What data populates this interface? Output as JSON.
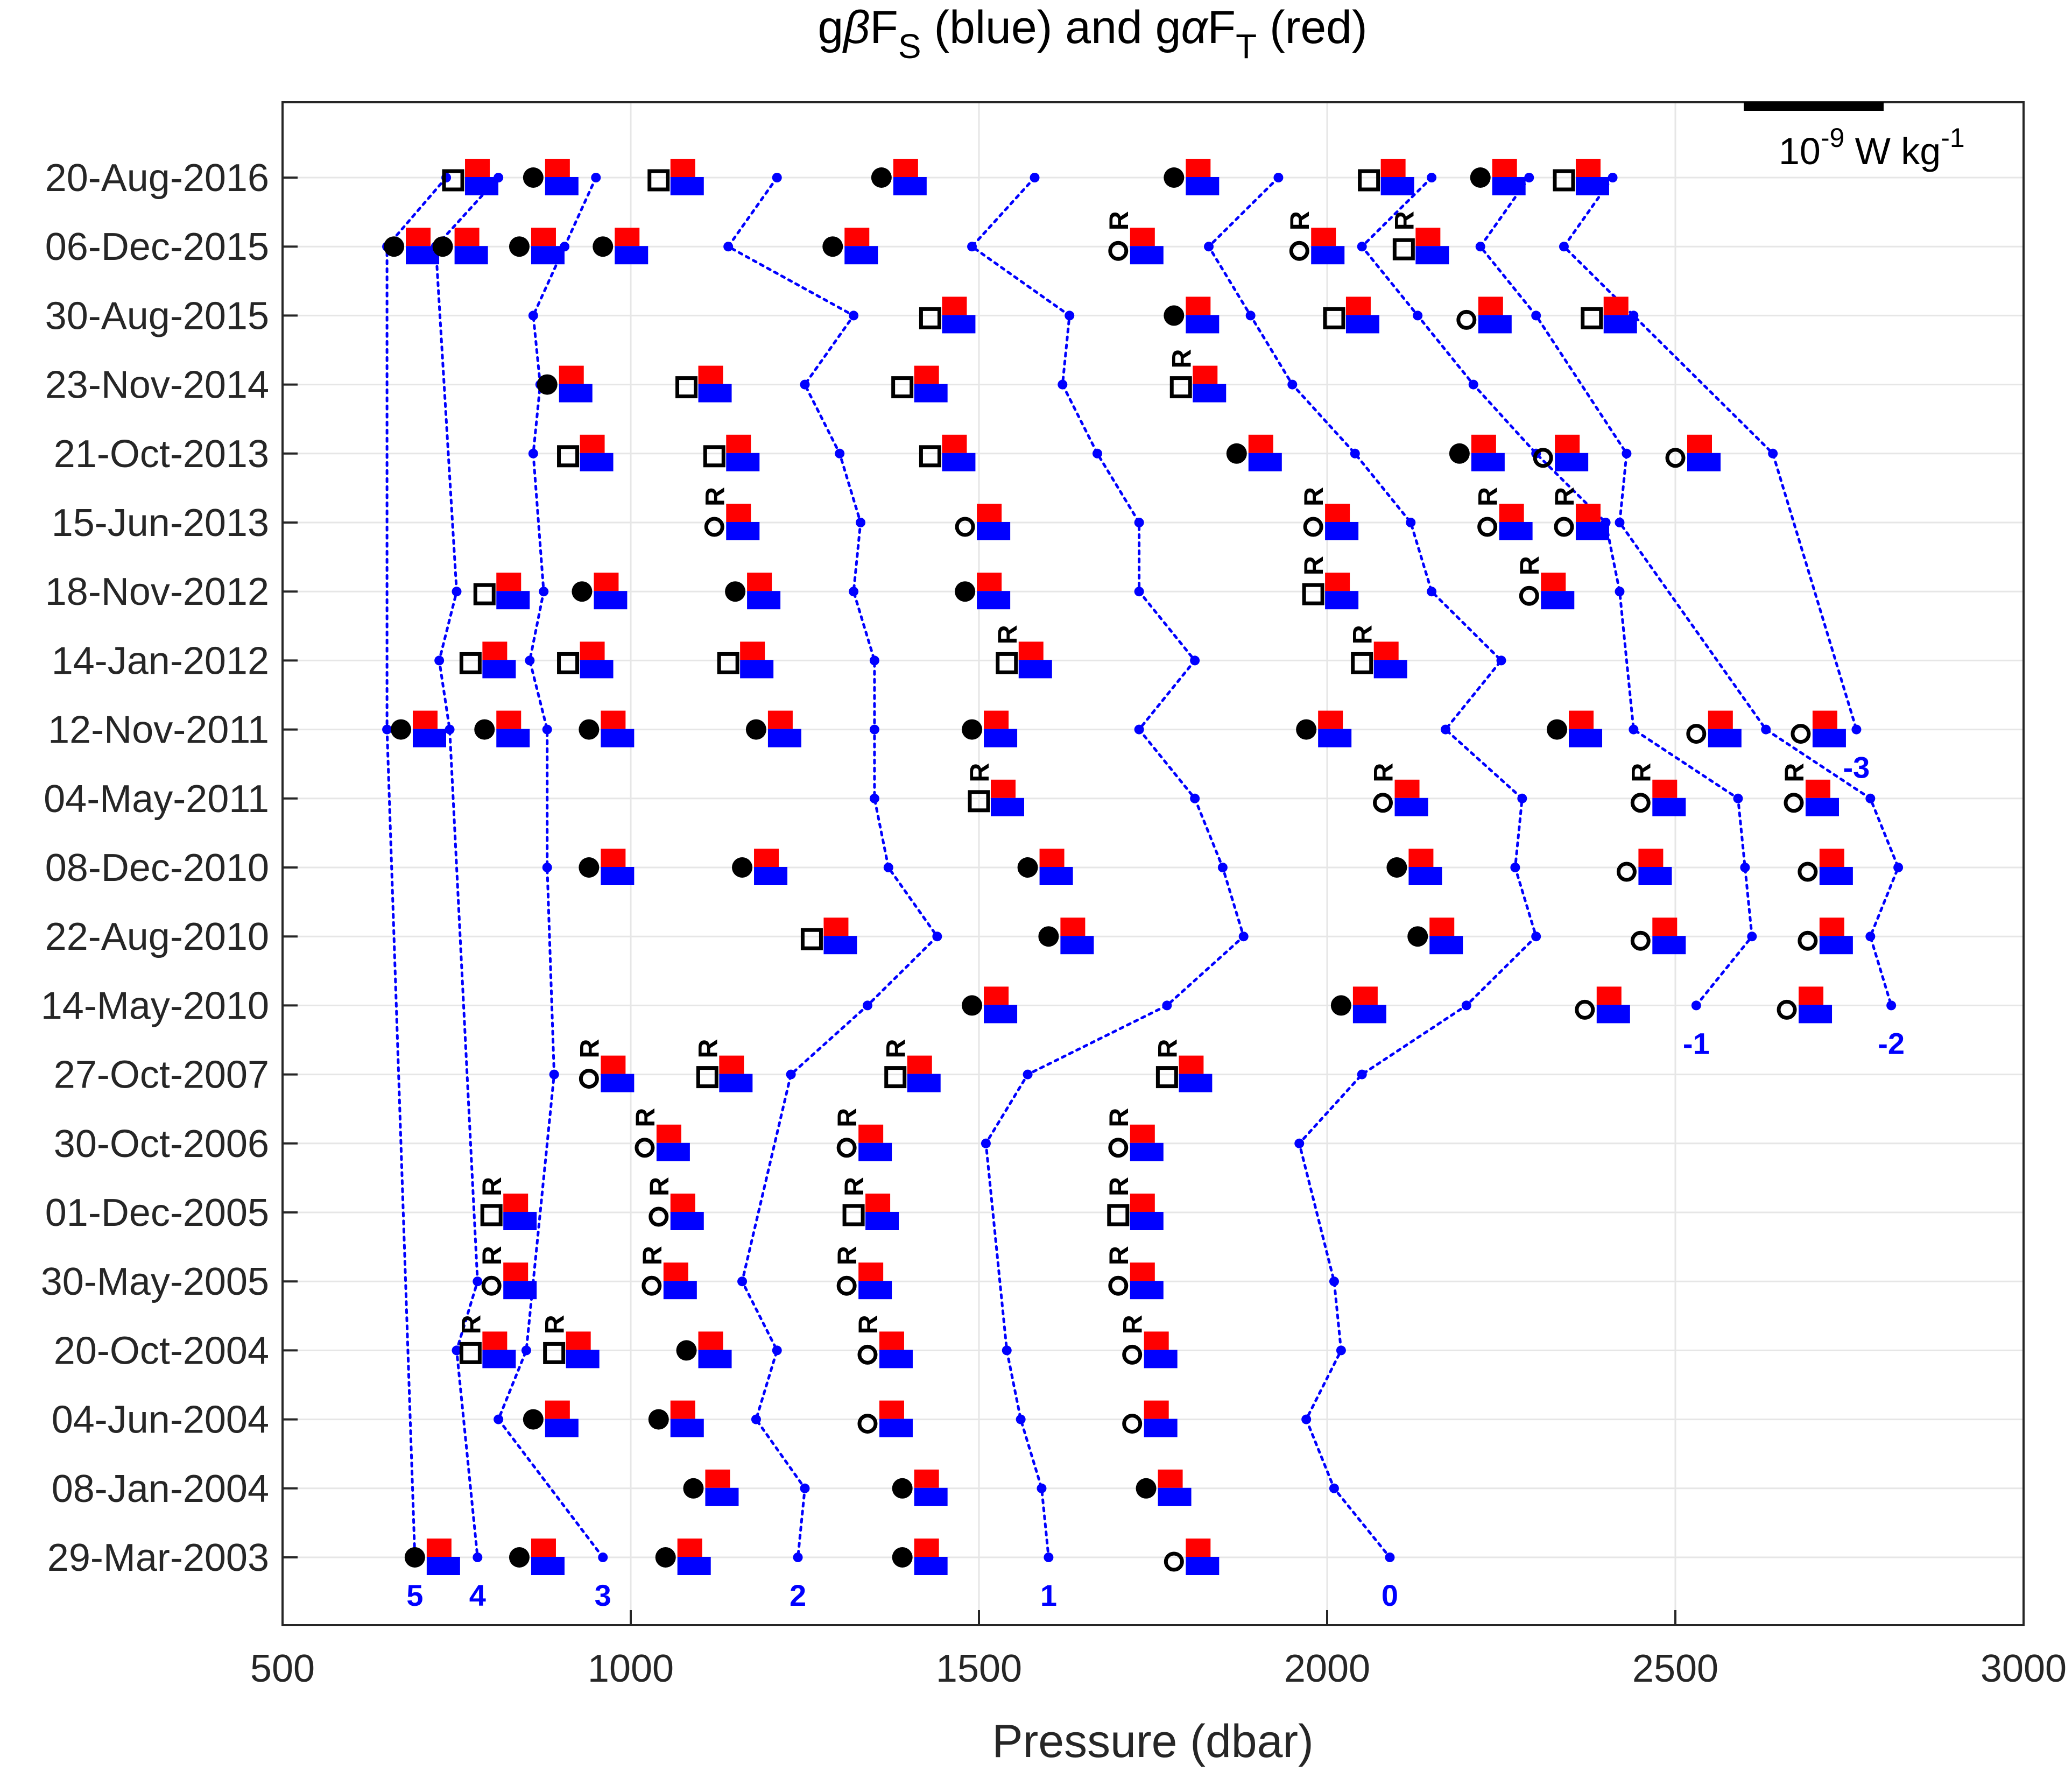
{
  "title": "gβF_S (blue) and gαF_T (red)",
  "title_parts": {
    "pre": "g",
    "beta": "β",
    "fs": "F",
    "fs_sub": "S",
    "mid": " (blue) and g",
    "alpha": "α",
    "ft": "F",
    "ft_sub": "T",
    "post": " (red)"
  },
  "scale_bar_label": "10⁻⁹ W kg⁻¹",
  "scale_parts": {
    "base": "10",
    "exp1": "-9",
    "unit": " W kg",
    "exp2": "-1"
  },
  "colors": {
    "blue": "#0000ff",
    "red": "#ff0000",
    "grid": "#e6e6e6",
    "axis": "#262626"
  },
  "chart_data": {
    "type": "scatter",
    "xlabel": "Pressure (dbar)",
    "xlim": [
      500,
      3000
    ],
    "x_ticks": [
      500,
      1000,
      1500,
      2000,
      2500,
      3000
    ],
    "dates": [
      "20-Aug-2016",
      "06-Dec-2015",
      "30-Aug-2015",
      "23-Nov-2014",
      "21-Oct-2013",
      "15-Jun-2013",
      "18-Nov-2012",
      "14-Jan-2012",
      "12-Nov-2011",
      "04-May-2011",
      "08-Dec-2010",
      "22-Aug-2010",
      "14-May-2010",
      "27-Oct-2007",
      "30-Oct-2006",
      "01-Dec-2005",
      "30-May-2005",
      "20-Oct-2004",
      "04-Jun-2004",
      "08-Jan-2004",
      "29-Mar-2003"
    ],
    "grid": true,
    "legend": "none",
    "contours": [
      {
        "label": "5",
        "points": [
          [
            0,
            735
          ],
          [
            1,
            650
          ],
          [
            8,
            650
          ],
          [
            20,
            690
          ]
        ]
      },
      {
        "label": "4",
        "points": [
          [
            0,
            810
          ],
          [
            1,
            720
          ],
          [
            6,
            750
          ],
          [
            7,
            725
          ],
          [
            8,
            740
          ],
          [
            16,
            780
          ],
          [
            17,
            750
          ],
          [
            20,
            780
          ]
        ]
      },
      {
        "label": "3",
        "points": [
          [
            0,
            950
          ],
          [
            1,
            905
          ],
          [
            2,
            860
          ],
          [
            3,
            870
          ],
          [
            4,
            860
          ],
          [
            6,
            875
          ],
          [
            7,
            855
          ],
          [
            8,
            880
          ],
          [
            10,
            880
          ],
          [
            13,
            890
          ],
          [
            17,
            850
          ],
          [
            18,
            810
          ],
          [
            20,
            960
          ]
        ]
      },
      {
        "label": "2",
        "points": [
          [
            0,
            1210
          ],
          [
            1,
            1140
          ],
          [
            2,
            1320
          ],
          [
            3,
            1250
          ],
          [
            4,
            1300
          ],
          [
            5,
            1330
          ],
          [
            6,
            1320
          ],
          [
            7,
            1350
          ],
          [
            8,
            1350
          ],
          [
            9,
            1350
          ],
          [
            10,
            1370
          ],
          [
            11,
            1440
          ],
          [
            12,
            1340
          ],
          [
            13,
            1230
          ],
          [
            16,
            1160
          ],
          [
            17,
            1210
          ],
          [
            18,
            1180
          ],
          [
            19,
            1250
          ],
          [
            20,
            1240
          ]
        ]
      },
      {
        "label": "1",
        "points": [
          [
            0,
            1580
          ],
          [
            1,
            1490
          ],
          [
            2,
            1630
          ],
          [
            3,
            1620
          ],
          [
            4,
            1670
          ],
          [
            5,
            1730
          ],
          [
            6,
            1730
          ],
          [
            7,
            1810
          ],
          [
            8,
            1730
          ],
          [
            9,
            1810
          ],
          [
            10,
            1850
          ],
          [
            11,
            1880
          ],
          [
            12,
            1770
          ],
          [
            13,
            1570
          ],
          [
            14,
            1510
          ],
          [
            17,
            1540
          ],
          [
            18,
            1560
          ],
          [
            19,
            1590
          ],
          [
            20,
            1600
          ]
        ]
      },
      {
        "label": "0",
        "points": [
          [
            0,
            1930
          ],
          [
            1,
            1830
          ],
          [
            2,
            1890
          ],
          [
            3,
            1950
          ],
          [
            4,
            2040
          ],
          [
            5,
            2120
          ],
          [
            6,
            2150
          ],
          [
            7,
            2250
          ],
          [
            8,
            2170
          ],
          [
            9,
            2280
          ],
          [
            10,
            2270
          ],
          [
            11,
            2300
          ],
          [
            12,
            2200
          ],
          [
            13,
            2050
          ],
          [
            14,
            1960
          ],
          [
            16,
            2010
          ],
          [
            17,
            2020
          ],
          [
            18,
            1970
          ],
          [
            19,
            2010
          ],
          [
            20,
            2090
          ]
        ]
      },
      {
        "label": "-1",
        "points": [
          [
            0,
            2150
          ],
          [
            1,
            2050
          ],
          [
            2,
            2130
          ],
          [
            3,
            2210
          ],
          [
            4,
            2300
          ],
          [
            5,
            2400
          ],
          [
            6,
            2420
          ],
          [
            8,
            2440
          ],
          [
            9,
            2590
          ],
          [
            10,
            2600
          ],
          [
            11,
            2610
          ],
          [
            12,
            2530
          ]
        ]
      },
      {
        "label": "-2",
        "points": [
          [
            0,
            2290
          ],
          [
            1,
            2220
          ],
          [
            2,
            2300
          ],
          [
            4,
            2430
          ],
          [
            5,
            2420
          ],
          [
            8,
            2630
          ],
          [
            9,
            2780
          ],
          [
            10,
            2820
          ],
          [
            11,
            2780
          ],
          [
            12,
            2810
          ]
        ]
      },
      {
        "label": "-3",
        "points": [
          [
            0,
            2410
          ],
          [
            1,
            2340
          ],
          [
            2,
            2440
          ],
          [
            4,
            2640
          ],
          [
            8,
            2760
          ]
        ]
      }
    ],
    "markers": [
      {
        "row": 0,
        "p": 745,
        "m": "sq"
      },
      {
        "row": 0,
        "p": 860,
        "m": "dot"
      },
      {
        "row": 0,
        "p": 1040,
        "m": "sq"
      },
      {
        "row": 0,
        "p": 1360,
        "m": "dot"
      },
      {
        "row": 0,
        "p": 1780,
        "m": "dot"
      },
      {
        "row": 0,
        "p": 2060,
        "m": "sq"
      },
      {
        "row": 0,
        "p": 2220,
        "m": "dot"
      },
      {
        "row": 0,
        "p": 2340,
        "m": "sq"
      },
      {
        "row": 1,
        "p": 660,
        "m": "dot"
      },
      {
        "row": 1,
        "p": 730,
        "m": "dot"
      },
      {
        "row": 1,
        "p": 840,
        "m": "dot"
      },
      {
        "row": 1,
        "p": 960,
        "m": "dot"
      },
      {
        "row": 1,
        "p": 1290,
        "m": "dot"
      },
      {
        "row": 1,
        "p": 1700,
        "m": "circR"
      },
      {
        "row": 1,
        "p": 1960,
        "m": "circR"
      },
      {
        "row": 1,
        "p": 2110,
        "m": "sqR"
      },
      {
        "row": 2,
        "p": 1430,
        "m": "sq"
      },
      {
        "row": 2,
        "p": 1780,
        "m": "dot"
      },
      {
        "row": 2,
        "p": 2010,
        "m": "sq"
      },
      {
        "row": 2,
        "p": 2200,
        "m": "circ"
      },
      {
        "row": 2,
        "p": 2380,
        "m": "sq"
      },
      {
        "row": 3,
        "p": 880,
        "m": "dot"
      },
      {
        "row": 3,
        "p": 1080,
        "m": "sq"
      },
      {
        "row": 3,
        "p": 1390,
        "m": "sq"
      },
      {
        "row": 3,
        "p": 1790,
        "m": "sqR"
      },
      {
        "row": 4,
        "p": 910,
        "m": "sq"
      },
      {
        "row": 4,
        "p": 1120,
        "m": "sq"
      },
      {
        "row": 4,
        "p": 1430,
        "m": "sq"
      },
      {
        "row": 4,
        "p": 1870,
        "m": "dot"
      },
      {
        "row": 4,
        "p": 2190,
        "m": "dot"
      },
      {
        "row": 4,
        "p": 2310,
        "m": "circ"
      },
      {
        "row": 4,
        "p": 2500,
        "m": "circ"
      },
      {
        "row": 5,
        "p": 1120,
        "m": "circR"
      },
      {
        "row": 5,
        "p": 1480,
        "m": "circ"
      },
      {
        "row": 5,
        "p": 1980,
        "m": "circR"
      },
      {
        "row": 5,
        "p": 2230,
        "m": "circR"
      },
      {
        "row": 5,
        "p": 2340,
        "m": "circR"
      },
      {
        "row": 6,
        "p": 790,
        "m": "sq"
      },
      {
        "row": 6,
        "p": 930,
        "m": "dot"
      },
      {
        "row": 6,
        "p": 1150,
        "m": "dot"
      },
      {
        "row": 6,
        "p": 1480,
        "m": "dot"
      },
      {
        "row": 6,
        "p": 1980,
        "m": "sqR"
      },
      {
        "row": 6,
        "p": 2290,
        "m": "circR"
      },
      {
        "row": 7,
        "p": 770,
        "m": "sq"
      },
      {
        "row": 7,
        "p": 910,
        "m": "sq"
      },
      {
        "row": 7,
        "p": 1140,
        "m": "sq"
      },
      {
        "row": 7,
        "p": 1540,
        "m": "sqR"
      },
      {
        "row": 7,
        "p": 2050,
        "m": "sqR"
      },
      {
        "row": 8,
        "p": 670,
        "m": "dot"
      },
      {
        "row": 8,
        "p": 790,
        "m": "dot"
      },
      {
        "row": 8,
        "p": 940,
        "m": "dot"
      },
      {
        "row": 8,
        "p": 1180,
        "m": "dot"
      },
      {
        "row": 8,
        "p": 1490,
        "m": "dot"
      },
      {
        "row": 8,
        "p": 1970,
        "m": "dot"
      },
      {
        "row": 8,
        "p": 2330,
        "m": "dot"
      },
      {
        "row": 8,
        "p": 2530,
        "m": "circ"
      },
      {
        "row": 8,
        "p": 2680,
        "m": "circ"
      },
      {
        "row": 9,
        "p": 1500,
        "m": "sqR"
      },
      {
        "row": 9,
        "p": 2080,
        "m": "circR"
      },
      {
        "row": 9,
        "p": 2450,
        "m": "circR"
      },
      {
        "row": 9,
        "p": 2670,
        "m": "circR"
      },
      {
        "row": 10,
        "p": 940,
        "m": "dot"
      },
      {
        "row": 10,
        "p": 1160,
        "m": "dot"
      },
      {
        "row": 10,
        "p": 1570,
        "m": "dot"
      },
      {
        "row": 10,
        "p": 2100,
        "m": "dot"
      },
      {
        "row": 10,
        "p": 2430,
        "m": "circ"
      },
      {
        "row": 10,
        "p": 2690,
        "m": "circ"
      },
      {
        "row": 11,
        "p": 1260,
        "m": "sq"
      },
      {
        "row": 11,
        "p": 1600,
        "m": "dot"
      },
      {
        "row": 11,
        "p": 2130,
        "m": "dot"
      },
      {
        "row": 11,
        "p": 2450,
        "m": "circ"
      },
      {
        "row": 11,
        "p": 2690,
        "m": "circ"
      },
      {
        "row": 12,
        "p": 1490,
        "m": "dot"
      },
      {
        "row": 12,
        "p": 2020,
        "m": "dot"
      },
      {
        "row": 12,
        "p": 2370,
        "m": "circ"
      },
      {
        "row": 12,
        "p": 2660,
        "m": "circ"
      },
      {
        "row": 13,
        "p": 940,
        "m": "circR"
      },
      {
        "row": 13,
        "p": 1110,
        "m": "sqR"
      },
      {
        "row": 13,
        "p": 1380,
        "m": "sqR"
      },
      {
        "row": 13,
        "p": 1770,
        "m": "sqR"
      },
      {
        "row": 14,
        "p": 1020,
        "m": "circR"
      },
      {
        "row": 14,
        "p": 1310,
        "m": "circR"
      },
      {
        "row": 14,
        "p": 1700,
        "m": "circR"
      },
      {
        "row": 15,
        "p": 800,
        "m": "sqR"
      },
      {
        "row": 15,
        "p": 1040,
        "m": "circR"
      },
      {
        "row": 15,
        "p": 1320,
        "m": "sqR"
      },
      {
        "row": 15,
        "p": 1700,
        "m": "sqR"
      },
      {
        "row": 16,
        "p": 800,
        "m": "circR"
      },
      {
        "row": 16,
        "p": 1030,
        "m": "circR"
      },
      {
        "row": 16,
        "p": 1310,
        "m": "circR"
      },
      {
        "row": 16,
        "p": 1700,
        "m": "circR"
      },
      {
        "row": 17,
        "p": 770,
        "m": "sqR"
      },
      {
        "row": 17,
        "p": 890,
        "m": "sqR"
      },
      {
        "row": 17,
        "p": 1080,
        "m": "dot"
      },
      {
        "row": 17,
        "p": 1340,
        "m": "circR"
      },
      {
        "row": 17,
        "p": 1720,
        "m": "circR"
      },
      {
        "row": 18,
        "p": 860,
        "m": "dot"
      },
      {
        "row": 18,
        "p": 1040,
        "m": "dot"
      },
      {
        "row": 18,
        "p": 1340,
        "m": "circ"
      },
      {
        "row": 18,
        "p": 1720,
        "m": "circ"
      },
      {
        "row": 19,
        "p": 1090,
        "m": "dot"
      },
      {
        "row": 19,
        "p": 1390,
        "m": "dot"
      },
      {
        "row": 19,
        "p": 1740,
        "m": "dot"
      },
      {
        "row": 20,
        "p": 690,
        "m": "dot"
      },
      {
        "row": 20,
        "p": 840,
        "m": "dot"
      },
      {
        "row": 20,
        "p": 1050,
        "m": "dot"
      },
      {
        "row": 20,
        "p": 1390,
        "m": "dot"
      },
      {
        "row": 20,
        "p": 1780,
        "m": "circ"
      }
    ]
  }
}
